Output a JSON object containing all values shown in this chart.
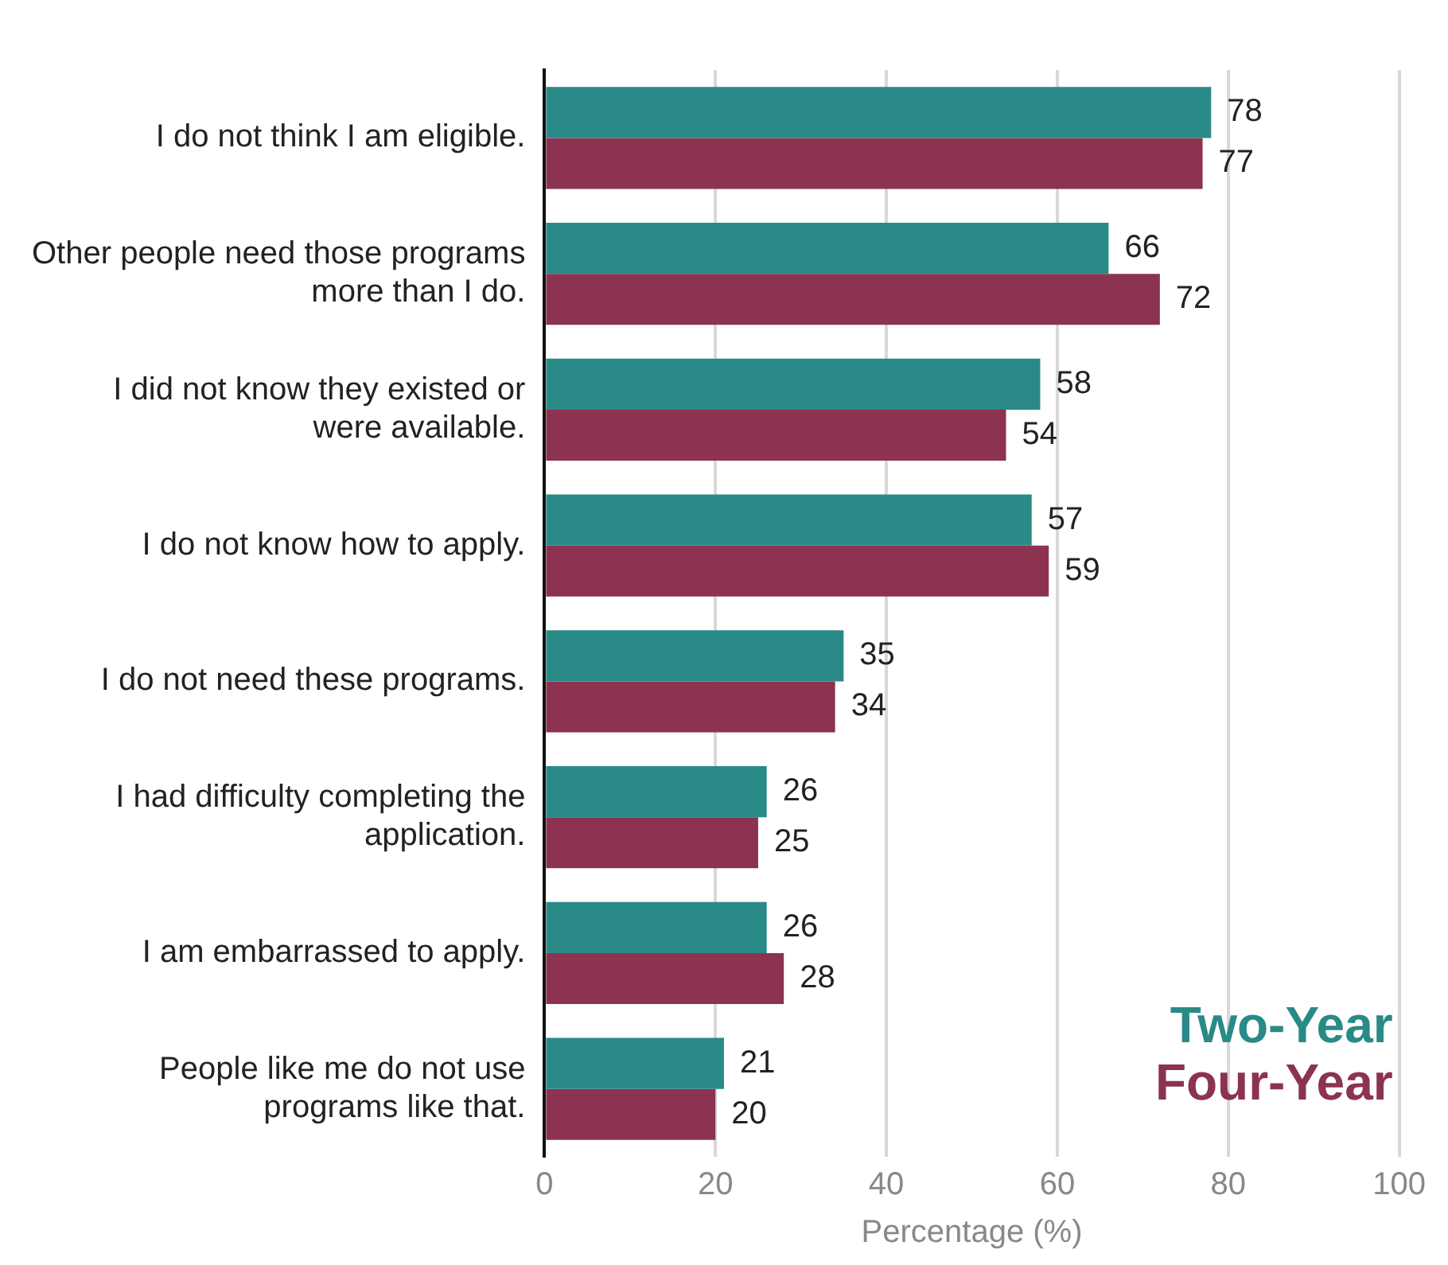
{
  "chart_data": {
    "type": "bar",
    "orientation": "horizontal",
    "xlabel": "Percentage (%)",
    "categories": [
      "I do not think I am eligible.",
      "Other people need those programs more than I do.",
      "I did not know they existed or were available.",
      "I do not know how to apply.",
      "I do not need these programs.",
      "I had difficulty completing the application.",
      "I am embarrassed to apply.",
      "People like me do not use programs like that."
    ],
    "series": [
      {
        "name": "Two-Year",
        "color": "#2a8a87",
        "values": [
          78,
          66,
          58,
          57,
          35,
          26,
          26,
          21
        ]
      },
      {
        "name": "Four-Year",
        "color": "#8b3350",
        "values": [
          77,
          72,
          54,
          59,
          34,
          25,
          28,
          20
        ]
      }
    ],
    "xlim": [
      0,
      100
    ],
    "xticks": [
      0,
      20,
      40,
      60,
      80,
      100
    ],
    "grid": "x",
    "legend": "bottom right",
    "data_labels": true
  }
}
